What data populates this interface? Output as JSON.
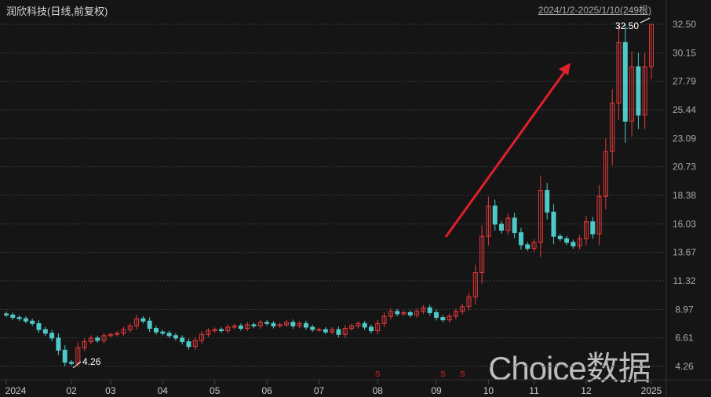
{
  "header": {
    "title": "润欣科技(日线,前复权)",
    "range": "2024/1/2-2025/1/10(249根)"
  },
  "watermark": "Choice数据",
  "chart_data": {
    "type": "candlestick",
    "y_ticks": [
      "32.50",
      "30.15",
      "27.79",
      "25.44",
      "23.09",
      "20.73",
      "18.38",
      "16.03",
      "13.67",
      "11.32",
      "8.97",
      "6.61",
      "4.26"
    ],
    "ylim": [
      4.26,
      32.5
    ],
    "x_ticks": [
      "2024",
      "02",
      "03",
      "04",
      "05",
      "06",
      "07",
      "08",
      "09",
      "10",
      "11",
      "12",
      "2025"
    ],
    "x_tick_index": [
      0,
      10,
      16,
      24,
      32,
      40,
      48,
      57,
      66,
      74,
      81,
      89,
      99
    ],
    "close": [
      8.5,
      8.3,
      8.2,
      8.0,
      7.8,
      7.3,
      7.0,
      6.6,
      5.6,
      4.6,
      4.5,
      5.8,
      6.3,
      6.6,
      6.4,
      6.8,
      6.9,
      7.0,
      7.3,
      7.6,
      8.2,
      8.0,
      7.4,
      7.1,
      7.0,
      6.8,
      6.6,
      6.3,
      5.9,
      6.4,
      6.9,
      7.2,
      7.3,
      7.2,
      7.5,
      7.6,
      7.4,
      7.7,
      7.6,
      7.9,
      7.8,
      7.6,
      7.7,
      7.9,
      7.6,
      7.8,
      7.5,
      7.3,
      7.3,
      7.1,
      7.3,
      6.9,
      7.4,
      7.6,
      7.8,
      7.5,
      7.2,
      7.8,
      8.4,
      8.8,
      8.6,
      8.7,
      8.5,
      8.8,
      9.1,
      8.7,
      8.3,
      8.1,
      8.4,
      8.8,
      9.2,
      10.0,
      12.0,
      15.0,
      17.5,
      16.0,
      15.5,
      16.5,
      15.3,
      14.3,
      14.0,
      14.5,
      18.8,
      17.0,
      15.0,
      14.8,
      14.5,
      14.2,
      14.8,
      16.2,
      15.2,
      18.3,
      22.0,
      26.0,
      31.0,
      24.5,
      29.0,
      25.0,
      29.0,
      32.5
    ],
    "annotations": {
      "low": "4.26",
      "high": "32.50"
    },
    "event_marker": "S",
    "event_index": [
      57,
      67,
      70
    ],
    "grid": true,
    "colors": {
      "up": "#e8393b",
      "down": "#4fc8c8",
      "arrow": "#e0202a",
      "grid": "#3a3a3a",
      "background": "#151515"
    }
  }
}
